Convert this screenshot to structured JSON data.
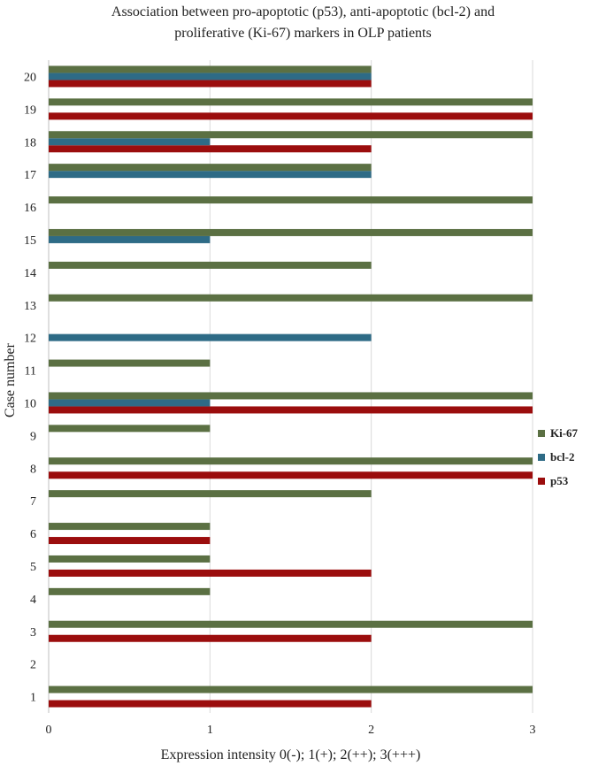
{
  "chart_data": {
    "type": "bar",
    "orientation": "horizontal",
    "title_lines": [
      "Association between pro-apoptotic (p53), anti-apoptotic (bcl-2) and",
      "proliferative (Ki-67) markers in OLP patients"
    ],
    "xlabel": "Expression intensity 0(-); 1(+); 2(++); 3(+++)",
    "ylabel": "Case number",
    "xlim": [
      0,
      3
    ],
    "xticks": [
      "0",
      "1",
      "2",
      "3"
    ],
    "categories": [
      "1",
      "2",
      "3",
      "4",
      "5",
      "6",
      "7",
      "8",
      "9",
      "10",
      "11",
      "12",
      "13",
      "14",
      "15",
      "16",
      "17",
      "18",
      "19",
      "20"
    ],
    "series": [
      {
        "name": "p53",
        "color": "#9b0d0d",
        "values": [
          2,
          0,
          2,
          0,
          2,
          1,
          0,
          3,
          0,
          3,
          0,
          0,
          0,
          0,
          0,
          0,
          0,
          2,
          3,
          2
        ]
      },
      {
        "name": "bcl-2",
        "color": "#2e6b86",
        "values": [
          0,
          0,
          0,
          0,
          0,
          0,
          0,
          0,
          0,
          1,
          0,
          2,
          0,
          0,
          1,
          0,
          2,
          1,
          0,
          2
        ]
      },
      {
        "name": "Ki-67",
        "color": "#5b7043",
        "values": [
          3,
          0,
          3,
          1,
          1,
          1,
          2,
          3,
          1,
          3,
          1,
          0,
          3,
          2,
          3,
          3,
          2,
          3,
          3,
          2
        ]
      }
    ],
    "legend_order": [
      "Ki-67",
      "bcl-2",
      "p53"
    ],
    "legend_position": "right",
    "grid": "vertical"
  }
}
